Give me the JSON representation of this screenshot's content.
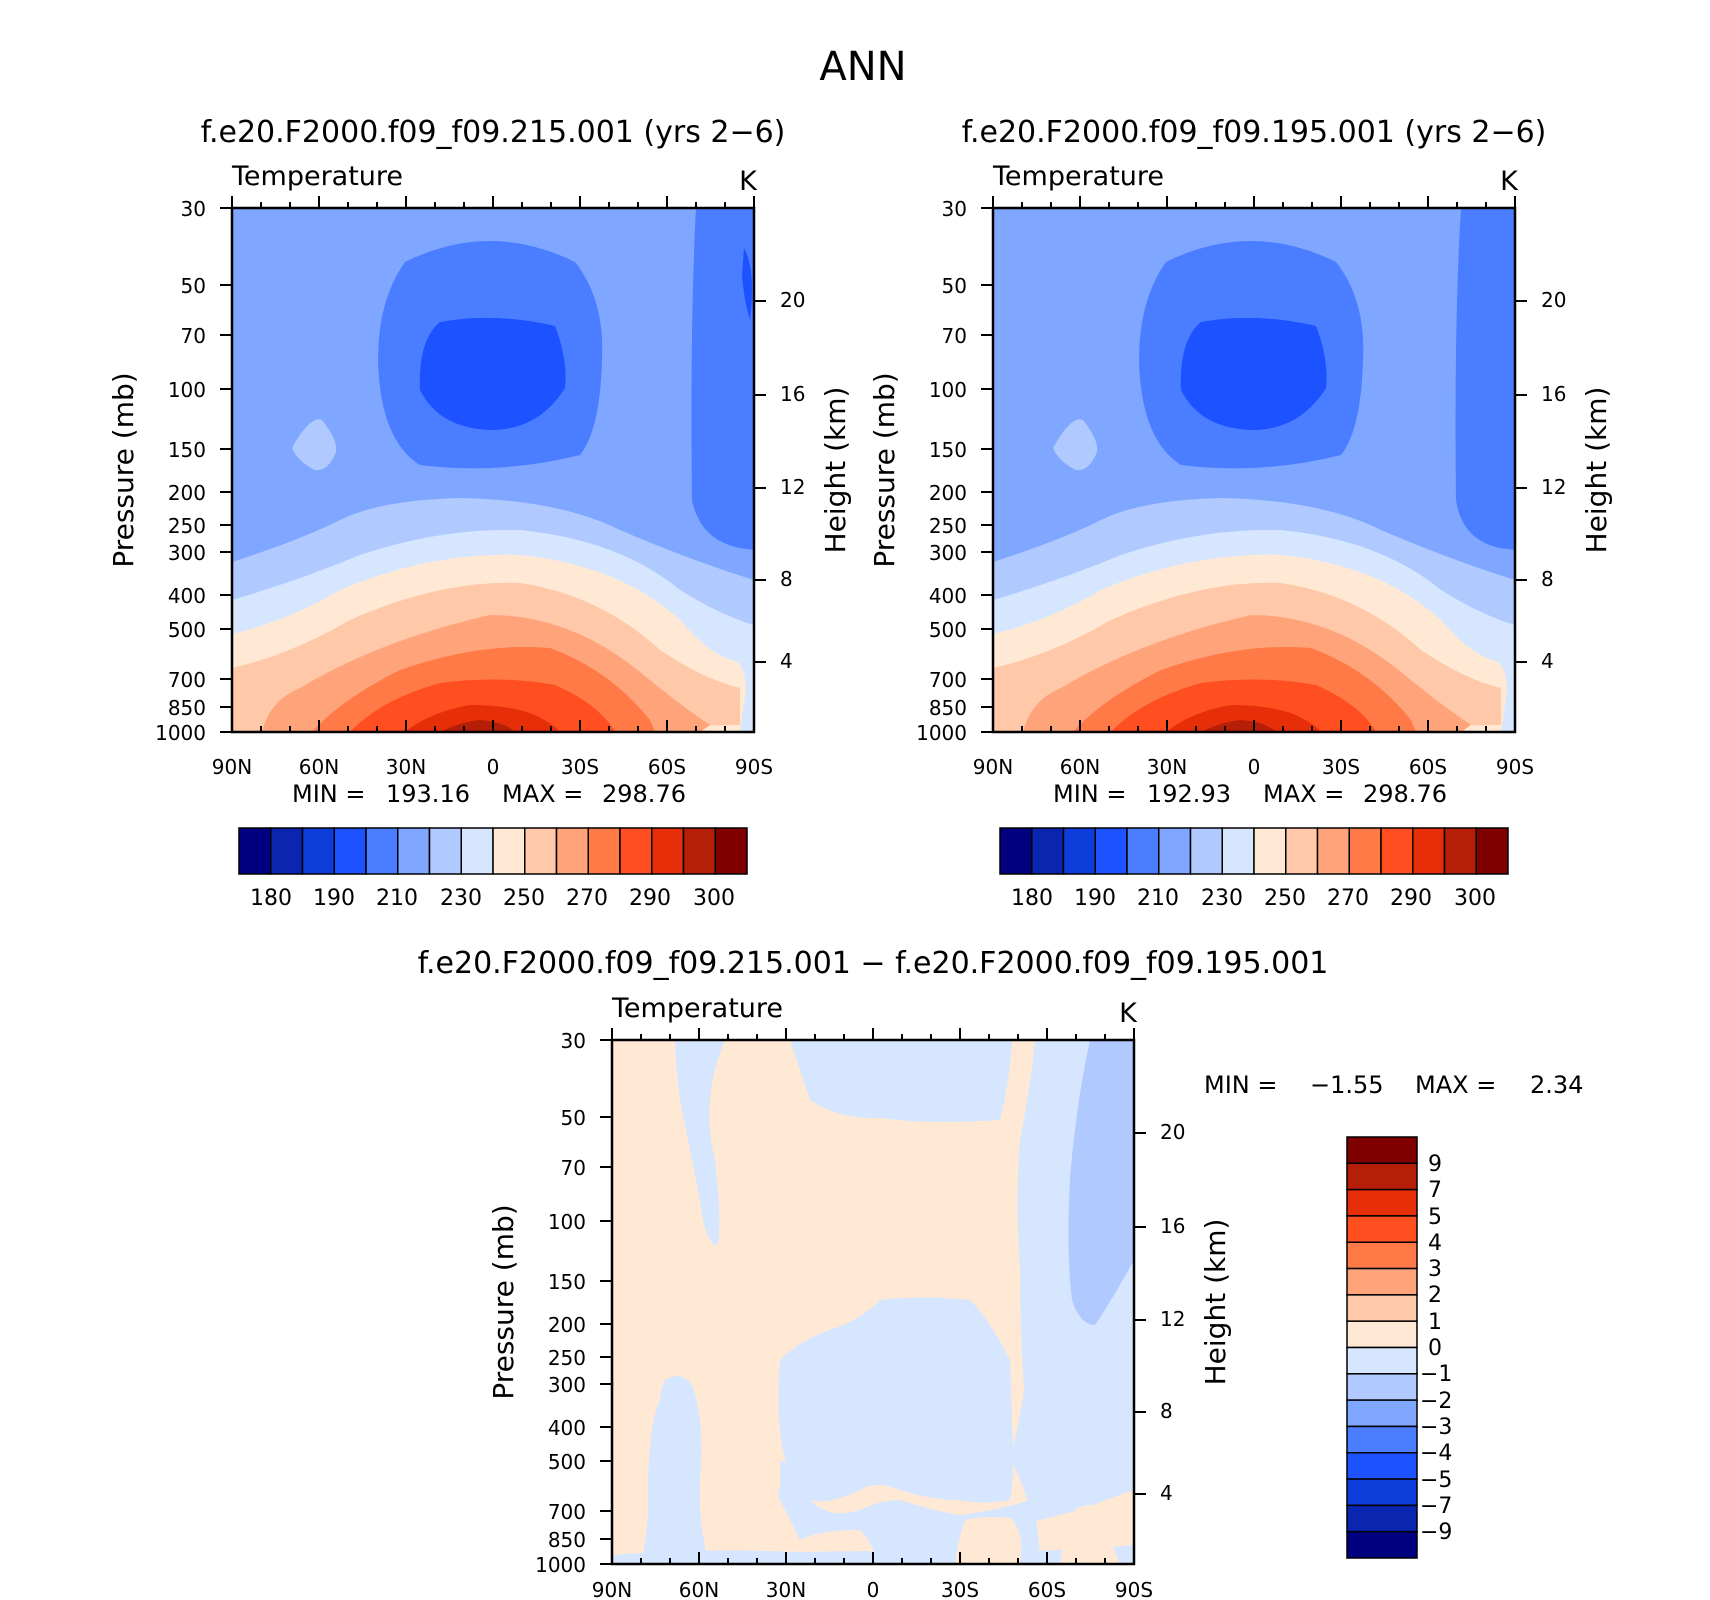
{
  "figure_title": "ANN",
  "colors": {
    "abs_levels": [
      "#000080",
      "#0a26b0",
      "#0d3ddb",
      "#1c52ff",
      "#4a7dff",
      "#7fa7ff",
      "#b0c9ff",
      "#d6e6ff",
      "#ffe9d4",
      "#ffc8a8",
      "#ffa47a",
      "#ff7a47",
      "#ff4e1f",
      "#e62e08",
      "#b51f08",
      "#800000"
    ],
    "diff_levels": [
      "#000080",
      "#0a26b0",
      "#0d3ddb",
      "#1c52ff",
      "#4a7dff",
      "#7fa7ff",
      "#b0c9ff",
      "#d6e6ff",
      "#ffe9d4",
      "#ffc8a8",
      "#ffa47a",
      "#ff7a47",
      "#ff4e1f",
      "#e62e08",
      "#b51f08",
      "#800000"
    ]
  },
  "chart_data": [
    {
      "type": "heatmap",
      "title": "f.e20.F2000.f09_f09.215.001 (yrs 2−6)",
      "variable": "Temperature",
      "units": "K",
      "ylabel": "Pressure (mb)",
      "y2label": "Height (km)",
      "x_ticks": [
        "90N",
        "60N",
        "30N",
        "0",
        "30S",
        "60S",
        "90S"
      ],
      "y_ticks": [
        "30",
        "50",
        "70",
        "100",
        "150",
        "200",
        "250",
        "300",
        "400",
        "500",
        "700",
        "850",
        "1000"
      ],
      "y2_ticks": [
        "20",
        "16",
        "12",
        "8",
        "4"
      ],
      "min_label": "MIN =",
      "min_value": "193.16",
      "max_label": "MAX =",
      "max_value": "298.76",
      "colorbar_labels": [
        "180",
        "190",
        "210",
        "230",
        "250",
        "270",
        "290",
        "300"
      ],
      "colorbar_levels": [
        180,
        185,
        190,
        200,
        210,
        220,
        230,
        240,
        250,
        260,
        270,
        280,
        290,
        295,
        300
      ]
    },
    {
      "type": "heatmap",
      "title": "f.e20.F2000.f09_f09.195.001 (yrs 2−6)",
      "variable": "Temperature",
      "units": "K",
      "ylabel": "Pressure (mb)",
      "y2label": "Height (km)",
      "x_ticks": [
        "90N",
        "60N",
        "30N",
        "0",
        "30S",
        "60S",
        "90S"
      ],
      "y_ticks": [
        "30",
        "50",
        "70",
        "100",
        "150",
        "200",
        "250",
        "300",
        "400",
        "500",
        "700",
        "850",
        "1000"
      ],
      "y2_ticks": [
        "20",
        "16",
        "12",
        "8",
        "4"
      ],
      "min_label": "MIN =",
      "min_value": "192.93",
      "max_label": "MAX =",
      "max_value": "298.76",
      "colorbar_labels": [
        "180",
        "190",
        "210",
        "230",
        "250",
        "270",
        "290",
        "300"
      ],
      "colorbar_levels": [
        180,
        185,
        190,
        200,
        210,
        220,
        230,
        240,
        250,
        260,
        270,
        280,
        290,
        295,
        300
      ]
    },
    {
      "type": "heatmap",
      "title": "f.e20.F2000.f09_f09.215.001 − f.e20.F2000.f09_f09.195.001",
      "variable": "Temperature",
      "units": "K",
      "ylabel": "Pressure (mb)",
      "y2label": "Height (km)",
      "x_ticks": [
        "90N",
        "60N",
        "30N",
        "0",
        "30S",
        "60S",
        "90S"
      ],
      "y_ticks": [
        "30",
        "50",
        "70",
        "100",
        "150",
        "200",
        "250",
        "300",
        "400",
        "500",
        "700",
        "850",
        "1000"
      ],
      "y2_ticks": [
        "20",
        "16",
        "12",
        "8",
        "4"
      ],
      "min_label": "MIN =",
      "min_value": "−1.55",
      "max_label": "MAX =",
      "max_value": "2.34",
      "colorbar_labels": [
        "9",
        "7",
        "5",
        "4",
        "3",
        "2",
        "1",
        "0",
        "−1",
        "−2",
        "−3",
        "−4",
        "−5",
        "−7",
        "−9"
      ],
      "colorbar_levels": [
        -9,
        -7,
        -5,
        -4,
        -3,
        -2,
        -1,
        0,
        1,
        2,
        3,
        4,
        5,
        7,
        9
      ]
    }
  ]
}
